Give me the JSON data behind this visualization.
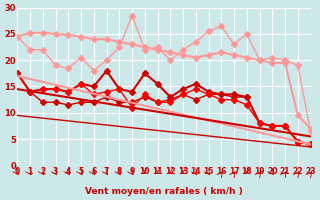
{
  "xlabel": "Vent moyen/en rafales ( km/h )",
  "xlim": [
    0,
    23
  ],
  "ylim": [
    0,
    30
  ],
  "yticks": [
    0,
    5,
    10,
    15,
    20,
    25,
    30
  ],
  "xticks": [
    0,
    1,
    2,
    3,
    4,
    5,
    6,
    7,
    8,
    9,
    10,
    11,
    12,
    13,
    14,
    15,
    16,
    17,
    18,
    19,
    20,
    21,
    22,
    23
  ],
  "bg_color": "#cce8e8",
  "grid_color": "#ffffff",
  "series": [
    {
      "x": [
        0,
        1,
        2,
        3,
        4,
        5,
        6,
        7,
        8,
        9,
        10,
        11,
        12,
        13,
        14,
        15,
        16,
        17,
        18,
        19,
        20,
        21,
        22,
        23
      ],
      "y": [
        24.5,
        25.2,
        25.2,
        25.0,
        24.8,
        24.5,
        24.0,
        24.0,
        23.5,
        23.0,
        22.5,
        22.0,
        21.5,
        21.0,
        20.5,
        21.0,
        21.5,
        21.0,
        20.5,
        20.0,
        19.5,
        19.5,
        9.5,
        7.0
      ],
      "color": "#ff9999",
      "lw": 1.5,
      "marker": "D",
      "ms": 3
    },
    {
      "x": [
        0,
        1,
        2,
        3,
        4,
        5,
        6,
        7,
        8,
        9,
        10,
        11,
        12,
        13,
        14,
        15,
        16,
        17,
        18,
        19,
        20,
        21,
        22,
        23
      ],
      "y": [
        24.5,
        22.0,
        22.0,
        19.0,
        18.5,
        20.5,
        18.0,
        20.0,
        22.5,
        28.5,
        22.0,
        22.5,
        20.0,
        22.0,
        23.5,
        25.5,
        26.5,
        23.0,
        25.0,
        20.0,
        20.5,
        20.0,
        19.0,
        6.5
      ],
      "color": "#ff9999",
      "lw": 1.0,
      "marker": "D",
      "ms": 3
    },
    {
      "x": [
        0,
        1,
        2,
        3,
        4,
        5,
        6,
        7,
        8,
        9,
        10,
        11,
        12,
        13,
        14,
        15,
        16,
        17,
        18,
        19,
        20,
        21,
        22,
        23
      ],
      "y": [
        17.5,
        14.0,
        14.5,
        14.5,
        14.0,
        15.5,
        15.0,
        18.0,
        14.5,
        14.0,
        17.5,
        15.5,
        13.0,
        14.5,
        15.5,
        14.0,
        13.5,
        13.5,
        13.0,
        8.0,
        7.5,
        7.5,
        4.5,
        4.0
      ],
      "color": "#cc0000",
      "lw": 1.5,
      "marker": "D",
      "ms": 3
    },
    {
      "x": [
        0,
        1,
        2,
        3,
        4,
        5,
        6,
        7,
        8,
        9,
        10,
        11,
        12,
        13,
        14,
        15,
        16,
        17,
        18,
        19,
        20,
        21,
        22,
        23
      ],
      "y": [
        17.5,
        14.0,
        12.0,
        12.0,
        11.5,
        12.0,
        12.0,
        13.0,
        12.0,
        12.0,
        13.0,
        12.0,
        12.5,
        13.5,
        12.5,
        13.5,
        13.5,
        13.0,
        13.0,
        8.0,
        7.5,
        7.5,
        4.5,
        4.0
      ],
      "color": "#cc0000",
      "lw": 1.0,
      "marker": "D",
      "ms": 3
    },
    {
      "x": [
        0,
        1,
        2,
        3,
        4,
        5,
        6,
        7,
        8,
        9,
        10,
        11,
        12,
        13,
        14,
        15,
        16,
        17,
        18,
        19,
        20,
        21,
        22,
        23
      ],
      "y": [
        17.5,
        14.0,
        14.5,
        14.5,
        14.0,
        15.5,
        13.5,
        14.0,
        14.5,
        11.0,
        13.5,
        12.0,
        12.0,
        13.5,
        14.5,
        13.5,
        12.5,
        12.5,
        11.5,
        8.0,
        7.5,
        7.5,
        4.5,
        4.0
      ],
      "color": "#ff0000",
      "lw": 1.0,
      "marker": "D",
      "ms": 3
    },
    {
      "x": [
        0,
        23
      ],
      "y": [
        17.0,
        4.0
      ],
      "color": "#ff9999",
      "lw": 1.5,
      "marker": null,
      "ms": 0
    },
    {
      "x": [
        0,
        23
      ],
      "y": [
        14.5,
        5.5
      ],
      "color": "#cc0000",
      "lw": 1.5,
      "marker": null,
      "ms": 0
    },
    {
      "x": [
        0,
        23
      ],
      "y": [
        9.5,
        3.5
      ],
      "color": "#cc0000",
      "lw": 1.0,
      "marker": null,
      "ms": 0
    }
  ],
  "arrows": {
    "angles_deg": [
      45,
      45,
      45,
      45,
      45,
      45,
      45,
      45,
      45,
      45,
      0,
      0,
      0,
      0,
      45,
      45,
      135,
      135,
      0,
      135,
      45,
      135,
      135,
      135
    ],
    "color": "#cc0000"
  }
}
